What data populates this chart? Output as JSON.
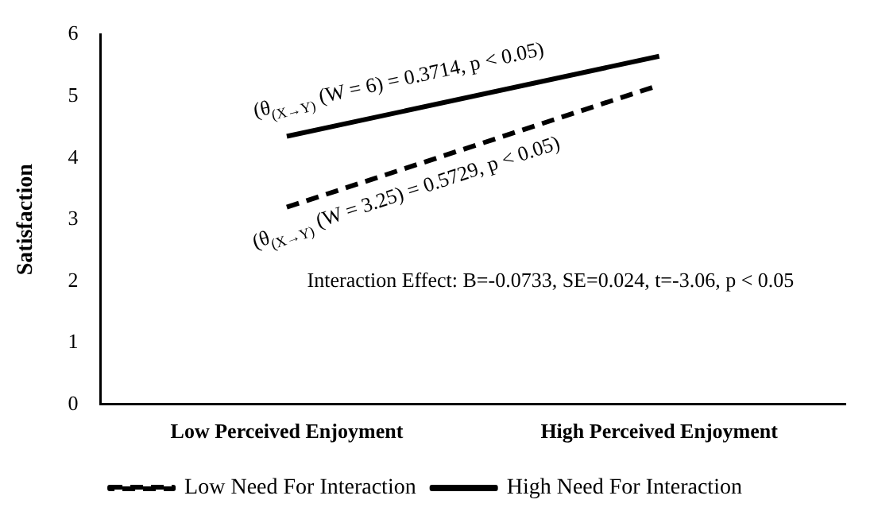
{
  "chart_data": {
    "type": "line",
    "ylabel": "Satisfaction",
    "categories": [
      "Low Perceived Enjoyment",
      "High Perceived Enjoyment"
    ],
    "series": [
      {
        "name": "Low Need For Interaction",
        "color": "#000000",
        "values": [
          3.2,
          5.18
        ],
        "line_style": "dashed"
      },
      {
        "name": "High Need For Interaction",
        "color": "#000000",
        "values": [
          4.35,
          5.65
        ],
        "line_style": "solid"
      }
    ],
    "ylim": [
      0,
      6
    ],
    "yticks": [
      0,
      1,
      2,
      3,
      4,
      5,
      6
    ],
    "grid": false,
    "legend": "bottom",
    "marker": "none",
    "annotations": [
      "(θ$_{(X→Y)}$ (W = 6) = 0.3714, p < 0.05)",
      "(θ$_{(X→Y)}$ (W = 3.25) = 0.5729, p < 0.05)",
      "Interaction Effect: B=-0.0733, SE=0.024, t=-3.06, p < 0.05"
    ]
  }
}
